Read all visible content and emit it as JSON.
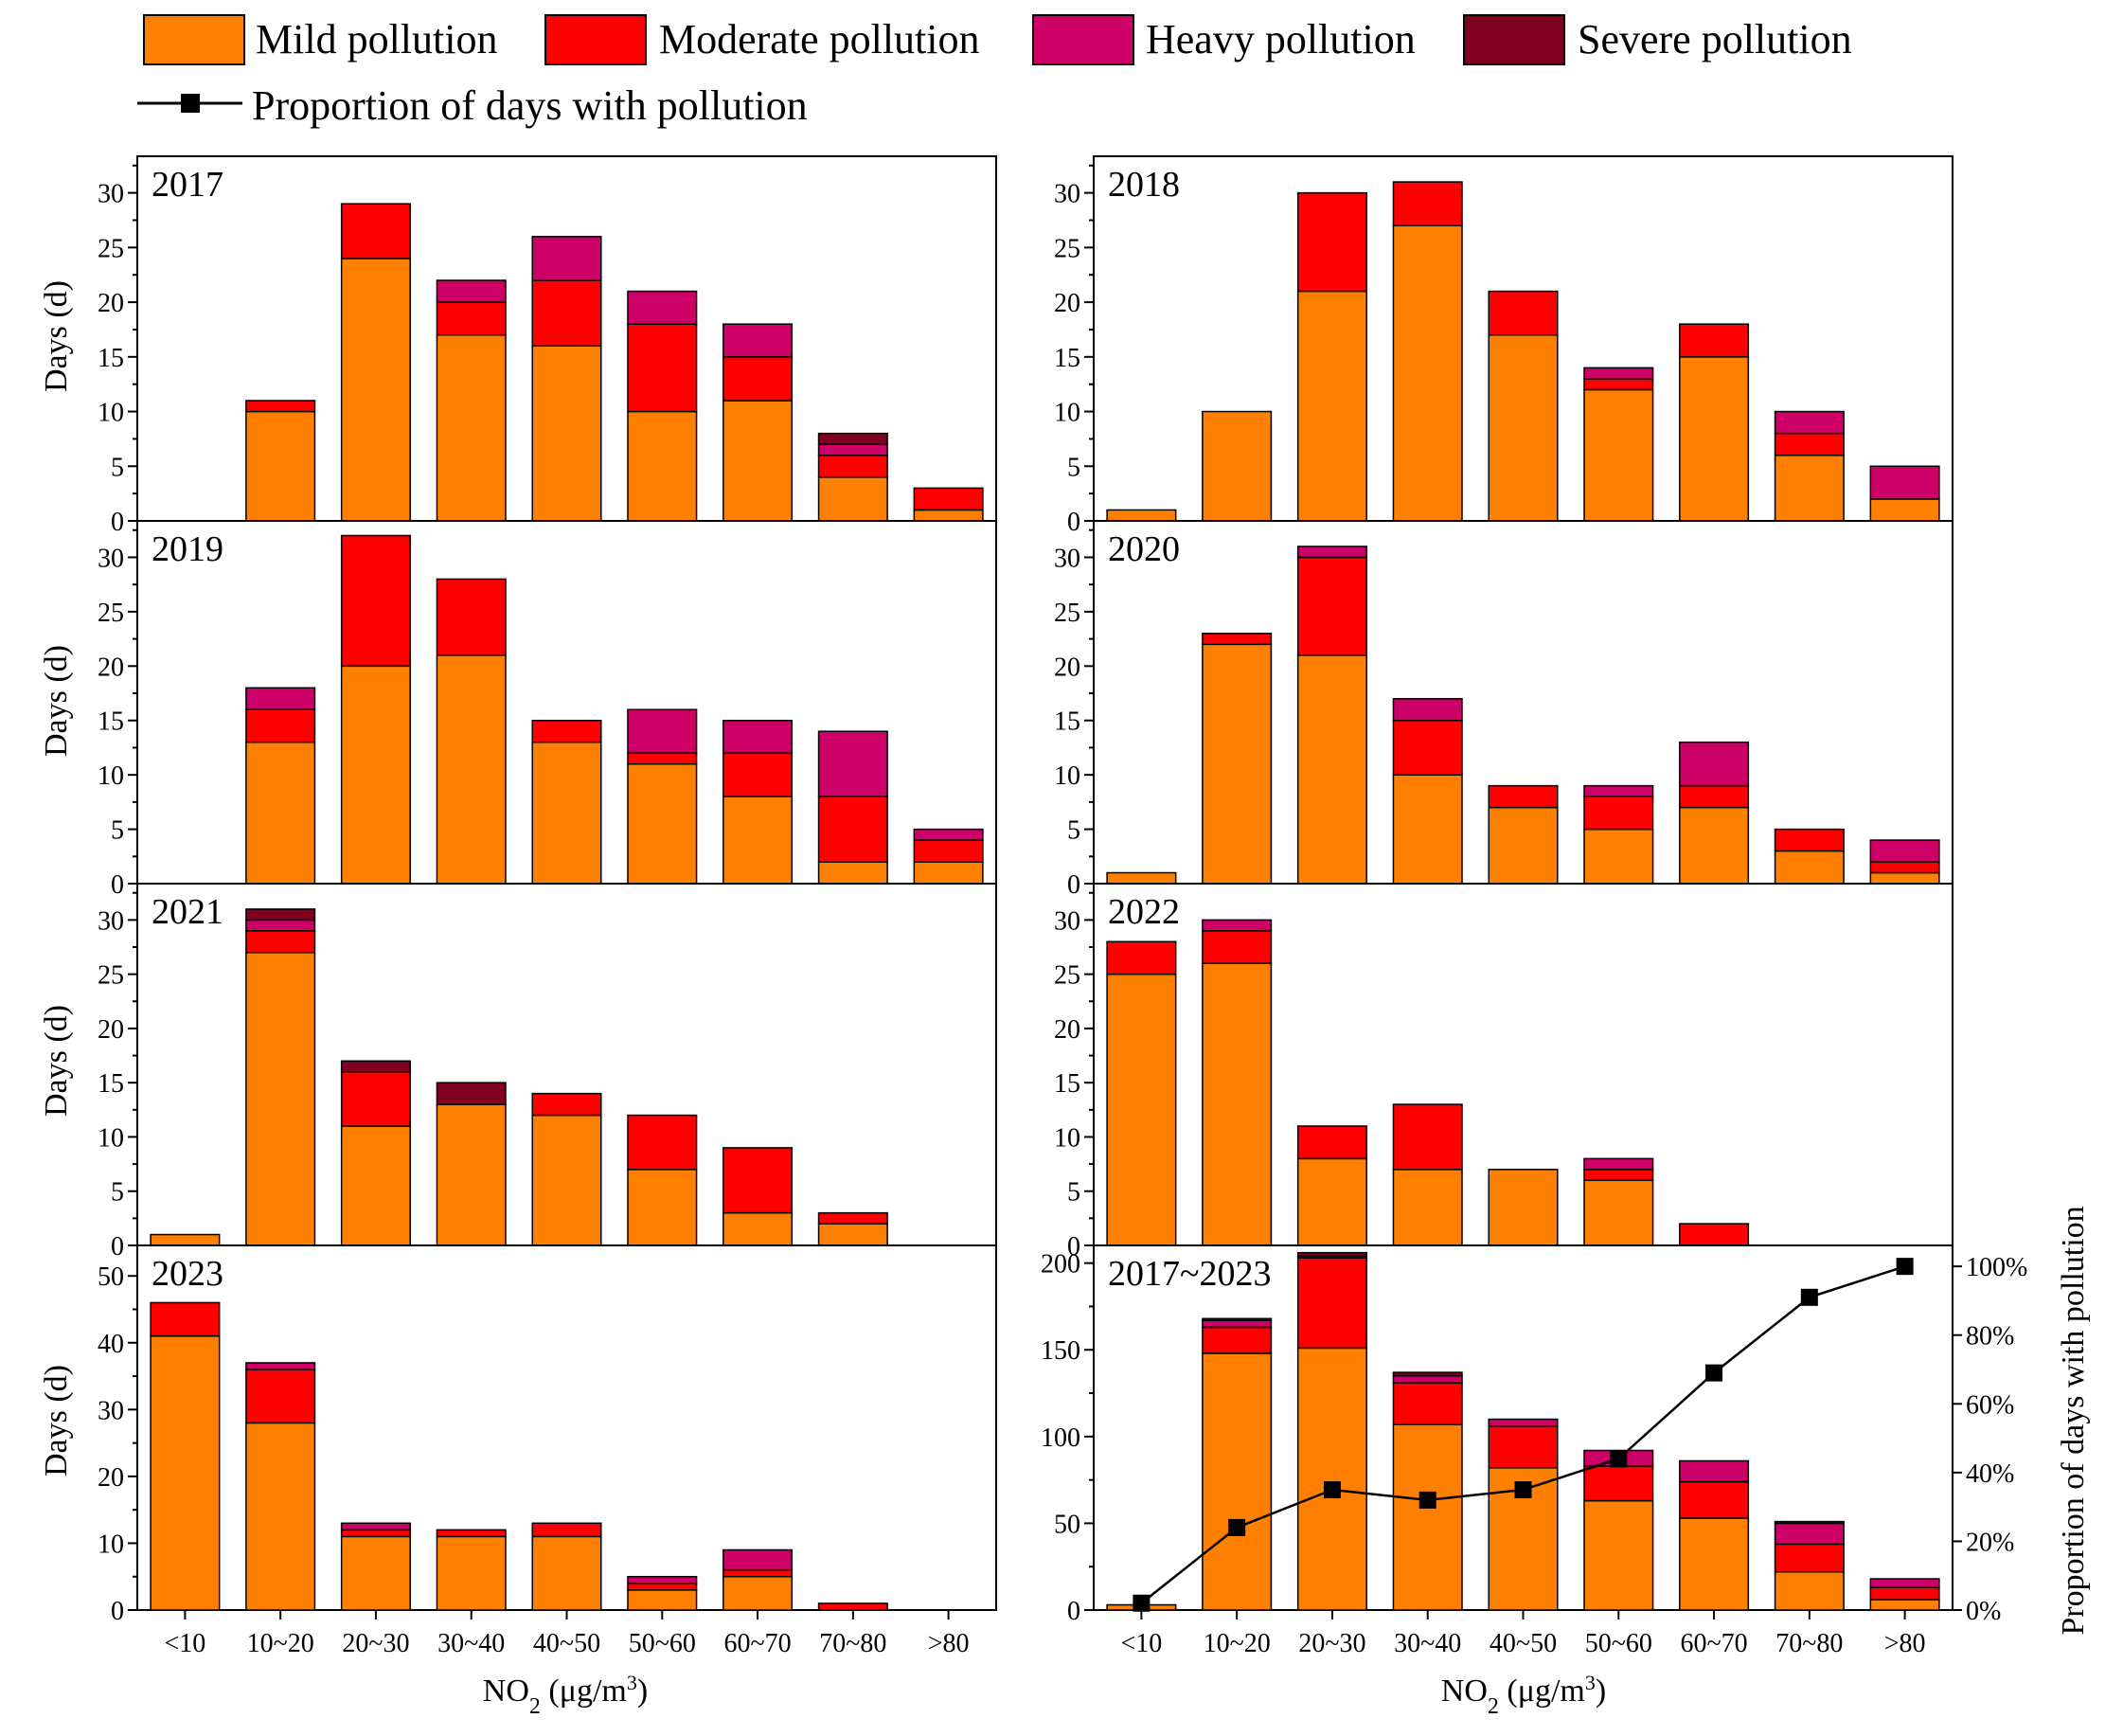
{
  "colors": {
    "mild": "#FF8000",
    "moderate": "#FF0000",
    "heavy": "#CC0066",
    "severe": "#800020",
    "line": "#000000"
  },
  "legend": {
    "mild": "Mild pollution",
    "moderate": "Moderate pollution",
    "heavy": "Heavy pollution",
    "severe": "Severe pollution",
    "line": "Proportion of days with pollution"
  },
  "axis_labels": {
    "ylabel": "Days (d)",
    "xlabel_prefix": "NO",
    "xlabel_sub": "2",
    "xlabel_unit": " (μg/m",
    "xlabel_sup": "3",
    "xlabel_close": ")",
    "y2label": "Proportion of days with pollution"
  },
  "chart_data": [
    {
      "type": "bar",
      "stacked": true,
      "title": "2017",
      "categories": [
        "<10",
        "10~20",
        "20~30",
        "30~40",
        "40~50",
        "50~60",
        "60~70",
        "70~80",
        ">80"
      ],
      "ylim": [
        0,
        33
      ],
      "yticks": [
        0,
        5,
        10,
        15,
        20,
        25,
        30
      ],
      "series": [
        {
          "name": "Mild pollution",
          "values": [
            0,
            10,
            24,
            17,
            16,
            10,
            11,
            4,
            1
          ]
        },
        {
          "name": "Moderate pollution",
          "values": [
            0,
            1,
            5,
            3,
            6,
            8,
            4,
            2,
            2
          ]
        },
        {
          "name": "Heavy pollution",
          "values": [
            0,
            0,
            0,
            2,
            4,
            3,
            3,
            1,
            0
          ]
        },
        {
          "name": "Severe pollution",
          "values": [
            0,
            0,
            0,
            0,
            0,
            0,
            0,
            1,
            0
          ]
        }
      ]
    },
    {
      "type": "bar",
      "stacked": true,
      "title": "2018",
      "categories": [
        "<10",
        "10~20",
        "20~30",
        "30~40",
        "40~50",
        "50~60",
        "60~70",
        "70~80",
        ">80"
      ],
      "ylim": [
        0,
        33
      ],
      "yticks": [
        0,
        5,
        10,
        15,
        20,
        25,
        30
      ],
      "series": [
        {
          "name": "Mild pollution",
          "values": [
            1,
            10,
            21,
            27,
            17,
            12,
            15,
            6,
            2
          ]
        },
        {
          "name": "Moderate pollution",
          "values": [
            0,
            0,
            9,
            4,
            4,
            1,
            3,
            2,
            0
          ]
        },
        {
          "name": "Heavy pollution",
          "values": [
            0,
            0,
            0,
            0,
            0,
            1,
            0,
            2,
            3
          ]
        },
        {
          "name": "Severe pollution",
          "values": [
            0,
            0,
            0,
            0,
            0,
            0,
            0,
            0,
            0
          ]
        }
      ]
    },
    {
      "type": "bar",
      "stacked": true,
      "title": "2019",
      "categories": [
        "<10",
        "10~20",
        "20~30",
        "30~40",
        "40~50",
        "50~60",
        "60~70",
        "70~80",
        ">80"
      ],
      "ylim": [
        0,
        33
      ],
      "yticks": [
        0,
        5,
        10,
        15,
        20,
        25,
        30
      ],
      "series": [
        {
          "name": "Mild pollution",
          "values": [
            0,
            13,
            20,
            21,
            13,
            11,
            8,
            2,
            2
          ]
        },
        {
          "name": "Moderate pollution",
          "values": [
            0,
            3,
            12,
            7,
            2,
            1,
            4,
            6,
            2
          ]
        },
        {
          "name": "Heavy pollution",
          "values": [
            0,
            2,
            0,
            0,
            0,
            4,
            3,
            6,
            1
          ]
        },
        {
          "name": "Severe pollution",
          "values": [
            0,
            0,
            0,
            0,
            0,
            0,
            0,
            0,
            0
          ]
        }
      ]
    },
    {
      "type": "bar",
      "stacked": true,
      "title": "2020",
      "categories": [
        "<10",
        "10~20",
        "20~30",
        "30~40",
        "40~50",
        "50~60",
        "60~70",
        "70~80",
        ">80"
      ],
      "ylim": [
        0,
        33
      ],
      "yticks": [
        0,
        5,
        10,
        15,
        20,
        25,
        30
      ],
      "series": [
        {
          "name": "Mild pollution",
          "values": [
            1,
            22,
            21,
            10,
            7,
            5,
            7,
            3,
            1
          ]
        },
        {
          "name": "Moderate pollution",
          "values": [
            0,
            1,
            9,
            5,
            2,
            3,
            2,
            2,
            1
          ]
        },
        {
          "name": "Heavy pollution",
          "values": [
            0,
            0,
            1,
            2,
            0,
            1,
            4,
            0,
            2
          ]
        },
        {
          "name": "Severe pollution",
          "values": [
            0,
            0,
            0,
            0,
            0,
            0,
            0,
            0,
            0
          ]
        }
      ]
    },
    {
      "type": "bar",
      "stacked": true,
      "title": "2021",
      "categories": [
        "<10",
        "10~20",
        "20~30",
        "30~40",
        "40~50",
        "50~60",
        "60~70",
        "70~80",
        ">80"
      ],
      "ylim": [
        0,
        33
      ],
      "yticks": [
        0,
        5,
        10,
        15,
        20,
        25,
        30
      ],
      "series": [
        {
          "name": "Mild pollution",
          "values": [
            1,
            27,
            11,
            13,
            12,
            7,
            3,
            2,
            0
          ]
        },
        {
          "name": "Moderate pollution",
          "values": [
            0,
            2,
            5,
            0,
            2,
            5,
            6,
            1,
            0
          ]
        },
        {
          "name": "Heavy pollution",
          "values": [
            0,
            1,
            0,
            0,
            0,
            0,
            0,
            0,
            0
          ]
        },
        {
          "name": "Severe pollution",
          "values": [
            0,
            1,
            1,
            2,
            0,
            0,
            0,
            0,
            0
          ]
        }
      ]
    },
    {
      "type": "bar",
      "stacked": true,
      "title": "2022",
      "categories": [
        "<10",
        "10~20",
        "20~30",
        "30~40",
        "40~50",
        "50~60",
        "60~70",
        "70~80",
        ">80"
      ],
      "ylim": [
        0,
        33
      ],
      "yticks": [
        0,
        5,
        10,
        15,
        20,
        25,
        30
      ],
      "series": [
        {
          "name": "Mild pollution",
          "values": [
            25,
            26,
            8,
            7,
            7,
            6,
            0,
            0,
            0
          ]
        },
        {
          "name": "Moderate pollution",
          "values": [
            3,
            3,
            3,
            6,
            0,
            1,
            2,
            0,
            0
          ]
        },
        {
          "name": "Heavy pollution",
          "values": [
            0,
            1,
            0,
            0,
            0,
            1,
            0,
            0,
            0
          ]
        },
        {
          "name": "Severe pollution",
          "values": [
            0,
            0,
            0,
            0,
            0,
            0,
            0,
            0,
            0
          ]
        }
      ]
    },
    {
      "type": "bar",
      "stacked": true,
      "title": "2023",
      "categories": [
        "<10",
        "10~20",
        "20~30",
        "30~40",
        "40~50",
        "50~60",
        "60~70",
        "70~80",
        ">80"
      ],
      "ylim": [
        0,
        54
      ],
      "yticks": [
        0,
        10,
        20,
        30,
        40,
        50
      ],
      "series": [
        {
          "name": "Mild pollution",
          "values": [
            41,
            28,
            11,
            11,
            11,
            3,
            5,
            0,
            0
          ]
        },
        {
          "name": "Moderate pollution",
          "values": [
            5,
            8,
            1,
            1,
            2,
            1,
            1,
            1,
            0
          ]
        },
        {
          "name": "Heavy pollution",
          "values": [
            0,
            1,
            1,
            0,
            0,
            1,
            3,
            0,
            0
          ]
        },
        {
          "name": "Severe pollution",
          "values": [
            0,
            0,
            0,
            0,
            0,
            0,
            0,
            0,
            0
          ]
        }
      ]
    },
    {
      "type": "bar",
      "stacked": true,
      "title": "2017~2023",
      "categories": [
        "<10",
        "10~20",
        "20~30",
        "30~40",
        "40~50",
        "50~60",
        "60~70",
        "70~80",
        ">80"
      ],
      "ylim": [
        0,
        208
      ],
      "yticks": [
        0,
        50,
        100,
        150,
        200
      ],
      "series": [
        {
          "name": "Mild pollution",
          "values": [
            3,
            148,
            151,
            107,
            82,
            63,
            53,
            22,
            6
          ]
        },
        {
          "name": "Moderate pollution",
          "values": [
            0,
            15,
            52,
            24,
            24,
            20,
            21,
            16,
            7
          ]
        },
        {
          "name": "Heavy pollution",
          "values": [
            0,
            4,
            1,
            4,
            4,
            9,
            12,
            12,
            5
          ]
        },
        {
          "name": "Severe pollution",
          "values": [
            0,
            1,
            2,
            2,
            0,
            0,
            0,
            1,
            0
          ]
        }
      ],
      "line": {
        "name": "Proportion of days with pollution",
        "values": [
          2,
          24,
          35,
          32,
          35,
          44,
          69,
          91,
          100
        ],
        "y2lim": [
          0,
          105
        ],
        "y2ticks": [
          0,
          20,
          40,
          60,
          80,
          100
        ],
        "y2ticklabels": [
          "0%",
          "20%",
          "40%",
          "60%",
          "80%",
          "100%"
        ]
      }
    }
  ]
}
